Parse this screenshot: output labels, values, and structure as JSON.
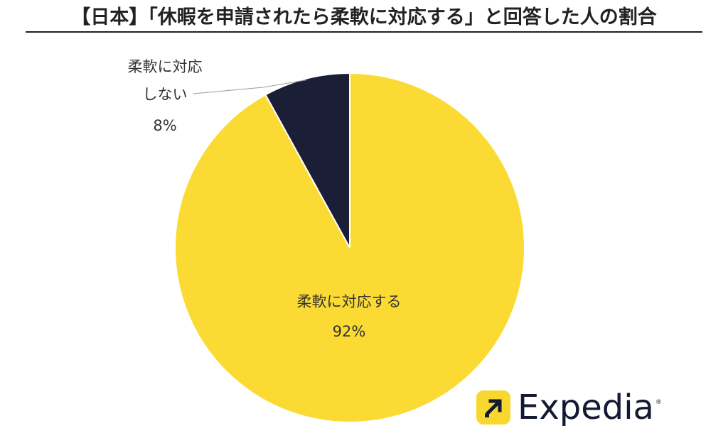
{
  "title": "【日本】「休暇を申請されたら柔軟に対応する」と回答した人の割合",
  "brand": {
    "name": "Expedia",
    "mark_icon": "arrow-up-right-icon",
    "mark_color": "#f8d82f",
    "text_color": "#151a33"
  },
  "chart_data": {
    "type": "pie",
    "title": "【日本】「休暇を申請されたら柔軟に対応する」と回答した人の割合",
    "slices": [
      {
        "label": "柔軟に対応する",
        "label_lines": [
          "柔軟に対応する"
        ],
        "value": 92,
        "value_label": "92%",
        "color": "#fbdb33"
      },
      {
        "label": "柔軟に対応しない",
        "label_lines": [
          "柔軟に対応",
          "しない"
        ],
        "value": 8,
        "value_label": "8%",
        "color": "#1b1e37"
      }
    ],
    "start_angle": "12 o'clock",
    "direction": "clockwise",
    "legend": "none"
  }
}
